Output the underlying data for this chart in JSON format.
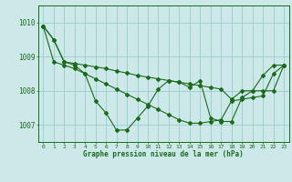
{
  "xlabel": "Graphe pression niveau de la mer (hPa)",
  "xlim": [
    -0.5,
    23.5
  ],
  "ylim": [
    1006.5,
    1010.5
  ],
  "yticks": [
    1007,
    1008,
    1009,
    1010
  ],
  "xticks": [
    0,
    1,
    2,
    3,
    4,
    5,
    6,
    7,
    8,
    9,
    10,
    11,
    12,
    13,
    14,
    15,
    16,
    17,
    18,
    19,
    20,
    21,
    22,
    23
  ],
  "background_color": "#cce8e8",
  "grid_color": "#99cccc",
  "line_color": "#1a6b1a",
  "line1_y": [
    1009.9,
    1009.5,
    1008.85,
    1008.75,
    1008.5,
    1007.7,
    1007.35,
    1006.85,
    1006.85,
    1007.2,
    1007.55,
    1008.05,
    1008.3,
    1008.25,
    1008.1,
    1008.3,
    1007.2,
    1007.1,
    1007.1,
    1007.8,
    1008.0,
    1008.45,
    1008.75,
    1008.75
  ],
  "line2_y": [
    1009.9,
    1009.5,
    1008.85,
    1008.8,
    1008.75,
    1008.7,
    1008.65,
    1008.58,
    1008.52,
    1008.45,
    1008.4,
    1008.35,
    1008.3,
    1008.25,
    1008.2,
    1008.15,
    1008.1,
    1008.05,
    1007.75,
    1008.0,
    1008.0,
    1008.0,
    1008.0,
    1008.75
  ],
  "line3_y": [
    1009.9,
    1008.85,
    1008.75,
    1008.65,
    1008.5,
    1008.35,
    1008.2,
    1008.05,
    1007.9,
    1007.75,
    1007.6,
    1007.45,
    1007.3,
    1007.15,
    1007.05,
    1007.05,
    1007.1,
    1007.15,
    1007.7,
    1007.75,
    1007.8,
    1007.85,
    1008.5,
    1008.75
  ],
  "x": [
    0,
    1,
    2,
    3,
    4,
    5,
    6,
    7,
    8,
    9,
    10,
    11,
    12,
    13,
    14,
    15,
    16,
    17,
    18,
    19,
    20,
    21,
    22,
    23
  ]
}
